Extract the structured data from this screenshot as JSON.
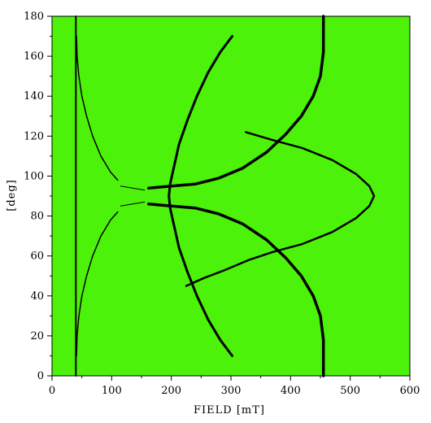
{
  "chart_data": {
    "type": "heatmap",
    "description_free": true,
    "xlabel": "FIELD [mT]",
    "ylabel": "[deg]",
    "xlim": [
      0,
      600
    ],
    "ylim": [
      0,
      180
    ],
    "x_ticks": [
      0,
      100,
      200,
      300,
      400,
      500,
      600
    ],
    "y_ticks": [
      0,
      20,
      40,
      60,
      80,
      100,
      120,
      140,
      160,
      180
    ],
    "background_color": "#4df20a",
    "line_color": "#000000",
    "traces": [
      {
        "name": "",
        "width": 2,
        "points": [
          [
            40,
            180
          ],
          [
            40,
            0
          ]
        ]
      },
      {
        "name": "",
        "width": 1.5,
        "points": [
          [
            41,
            170
          ],
          [
            42,
            160
          ],
          [
            45,
            150
          ],
          [
            50,
            140
          ],
          [
            58,
            130
          ],
          [
            68,
            120
          ],
          [
            82,
            110
          ],
          [
            98,
            102
          ],
          [
            110,
            98
          ]
        ]
      },
      {
        "name": "",
        "width": 1.5,
        "points": [
          [
            41,
            10
          ],
          [
            42,
            20
          ],
          [
            45,
            30
          ],
          [
            50,
            40
          ],
          [
            58,
            50
          ],
          [
            68,
            60
          ],
          [
            82,
            70
          ],
          [
            98,
            78
          ],
          [
            110,
            82
          ]
        ]
      },
      {
        "name": "",
        "width": 3,
        "points": [
          [
            302,
            170
          ],
          [
            282,
            162
          ],
          [
            262,
            152
          ],
          [
            243,
            140
          ],
          [
            227,
            128
          ],
          [
            213,
            116
          ],
          [
            204,
            104
          ],
          [
            198,
            96
          ],
          [
            196,
            90
          ],
          [
            198,
            84
          ],
          [
            204,
            76
          ],
          [
            213,
            64
          ],
          [
            227,
            52
          ],
          [
            243,
            40
          ],
          [
            262,
            28
          ],
          [
            282,
            18
          ],
          [
            302,
            10
          ]
        ]
      },
      {
        "name": "",
        "width": 3.5,
        "points": [
          [
            455,
            180
          ],
          [
            455,
            162
          ],
          [
            450,
            150
          ],
          [
            438,
            140
          ],
          [
            418,
            130
          ],
          [
            392,
            121
          ],
          [
            360,
            112
          ],
          [
            320,
            104
          ],
          [
            280,
            99
          ],
          [
            240,
            96
          ],
          [
            200,
            95
          ],
          [
            162,
            94
          ]
        ]
      },
      {
        "name": "",
        "width": 3.5,
        "points": [
          [
            455,
            0
          ],
          [
            455,
            18
          ],
          [
            450,
            30
          ],
          [
            438,
            40
          ],
          [
            418,
            50
          ],
          [
            392,
            59
          ],
          [
            360,
            68
          ],
          [
            320,
            76
          ],
          [
            280,
            81
          ],
          [
            240,
            84
          ],
          [
            200,
            85
          ],
          [
            162,
            86
          ]
        ]
      },
      {
        "name": "",
        "width": 2.5,
        "points": [
          [
            325,
            122
          ],
          [
            370,
            118
          ],
          [
            420,
            114
          ],
          [
            470,
            108
          ],
          [
            510,
            101
          ],
          [
            532,
            95
          ],
          [
            540,
            90
          ],
          [
            532,
            85
          ],
          [
            510,
            79
          ],
          [
            470,
            72
          ],
          [
            420,
            66
          ],
          [
            370,
            62
          ],
          [
            330,
            58
          ],
          [
            290,
            53
          ],
          [
            255,
            49
          ],
          [
            225,
            45
          ]
        ]
      },
      {
        "name": "",
        "width": 1,
        "points": [
          [
            115,
            95
          ],
          [
            135,
            94
          ],
          [
            155,
            93
          ]
        ]
      },
      {
        "name": "",
        "width": 1,
        "points": [
          [
            115,
            85
          ],
          [
            135,
            86
          ],
          [
            155,
            87
          ]
        ]
      }
    ]
  }
}
